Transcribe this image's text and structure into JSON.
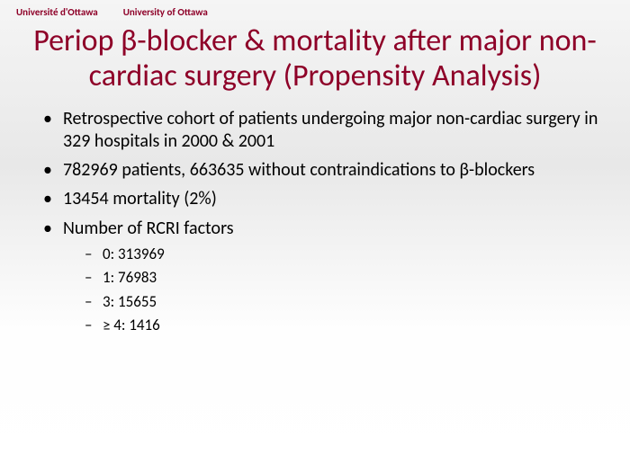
{
  "header": {
    "univ_fr": "Université d'Ottawa",
    "univ_en": "University of Ottawa"
  },
  "title": "Periop β-blocker & mortality after major non-cardiac surgery (Propensity Analysis)",
  "bullets": [
    {
      "text": "Retrospective cohort of patients undergoing major non-cardiac surgery in 329 hospitals in 2000 & 2001"
    },
    {
      "text": "782969 patients, 663635 without contraindications to β-blockers"
    },
    {
      "text": "13454 mortality (2%)"
    },
    {
      "text": "Number of RCRI factors",
      "sub": [
        "0: 313969",
        "1: 76983",
        "3: 15655",
        "≥ 4: 1416"
      ]
    }
  ],
  "colors": {
    "title_color": "#8e0028",
    "header_color": "#8e0028",
    "text_color": "#000000",
    "bg_top": "#f5f5f5",
    "bg_mid": "#e8e8e8",
    "bg_bottom": "#ffffff"
  },
  "typography": {
    "title_fontsize": 34,
    "bullet_fontsize": 20,
    "subbullet_fontsize": 17,
    "header_fontsize": 11,
    "font_family": "Calibri"
  }
}
